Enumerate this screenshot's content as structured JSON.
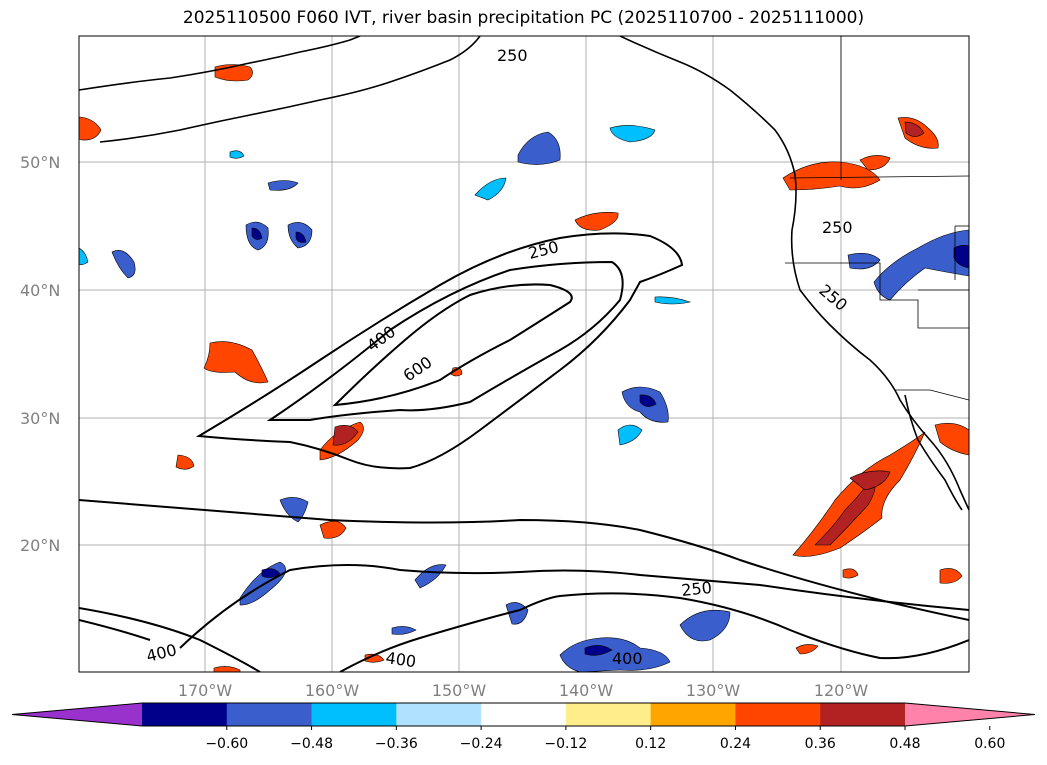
{
  "title": "2025110500 F060 IVT, river basin precipitation PC (2025110700 - 2025111000)",
  "lat_labels": [
    "50°N",
    "40°N",
    "30°N",
    "20°N"
  ],
  "lon_labels": [
    "170°W",
    "160°W",
    "150°W",
    "140°W",
    "130°W",
    "120°W"
  ],
  "contour_labels": [
    "250",
    "250",
    "250",
    "250",
    "250",
    "400",
    "600",
    "400",
    "400",
    "400"
  ],
  "colorbar": {
    "colors": [
      "#9932cc",
      "#00008b",
      "#3a5fcd",
      "#00bfff",
      "#b0e2ff",
      "#ffffff",
      "#ffec8b",
      "#ffa500",
      "#ff4500",
      "#b22222",
      "#ff82ab"
    ],
    "tick_labels": [
      "−0.60",
      "−0.48",
      "−0.36",
      "−0.24",
      "−0.12",
      "0.12",
      "0.24",
      "0.36",
      "0.48",
      "0.60"
    ]
  }
}
